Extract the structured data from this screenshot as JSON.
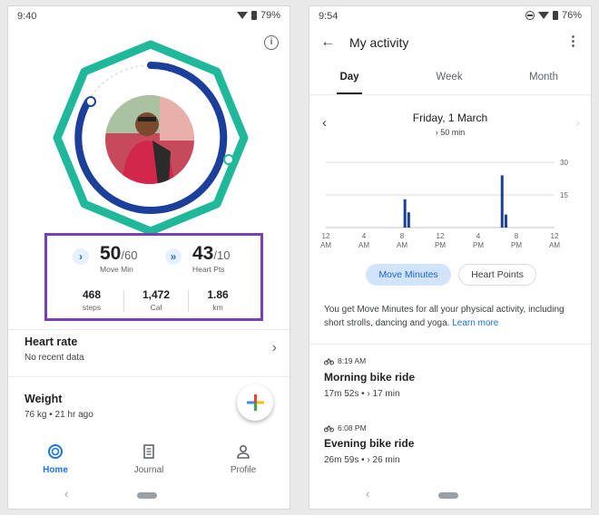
{
  "left": {
    "status_time": "9:40",
    "battery": "79%",
    "move_min": {
      "value": "50",
      "goal": "/60",
      "label": "Move Min"
    },
    "heart_pts": {
      "value": "43",
      "goal": "/10",
      "label": "Heart Pts"
    },
    "stats": [
      {
        "value": "468",
        "unit": "steps"
      },
      {
        "value": "1,472",
        "unit": "Cal"
      },
      {
        "value": "1.86",
        "unit": "km"
      }
    ],
    "heart_rate": {
      "title": "Heart rate",
      "sub": "No recent data"
    },
    "weight": {
      "title": "Weight",
      "sub": "76 kg • 21 hr ago"
    },
    "nav": [
      {
        "label": "Home",
        "icon": "home-ring-icon"
      },
      {
        "label": "Journal",
        "icon": "journal-icon"
      },
      {
        "label": "Profile",
        "icon": "profile-icon"
      }
    ],
    "colors": {
      "move_ring": "#1b3f9a",
      "heart_ring": "#1fb89a",
      "accent": "#1a73e8",
      "highlight_box": "#7b3fb3"
    }
  },
  "right": {
    "status_time": "9:54",
    "battery": "76%",
    "title": "My activity",
    "tabs": [
      "Day",
      "Week",
      "Month"
    ],
    "date": "Friday, 1 March",
    "date_sub": "› 50 min",
    "chart_data": {
      "type": "bar",
      "x_tick_labels": [
        [
          "12",
          "AM"
        ],
        [
          "4",
          "AM"
        ],
        [
          "8",
          "AM"
        ],
        [
          "12",
          "PM"
        ],
        [
          "4",
          "PM"
        ],
        [
          "8",
          "PM"
        ],
        [
          "12",
          "AM"
        ]
      ],
      "y_ticks": [
        15,
        30
      ],
      "ylim": [
        0,
        30
      ],
      "bars": [
        {
          "hour": 8.3,
          "value": 13
        },
        {
          "hour": 8.7,
          "value": 7
        },
        {
          "hour": 18.5,
          "value": 24
        },
        {
          "hour": 18.9,
          "value": 6
        }
      ],
      "grid": true
    },
    "chips": {
      "active": "Move Minutes",
      "inactive": "Heart Points"
    },
    "description": "You get Move Minutes for all your physical activity, including short strolls, dancing and yoga.",
    "learn_more": "Learn more",
    "activities": [
      {
        "time": "8:19 AM",
        "title": "Morning bike ride",
        "duration": "17m 52s",
        "sep": " • ",
        "move": "› 17 min"
      },
      {
        "time": "6:08 PM",
        "title": "Evening bike ride",
        "duration": "26m 59s",
        "sep": " • ",
        "move": "› 26 min"
      }
    ]
  }
}
